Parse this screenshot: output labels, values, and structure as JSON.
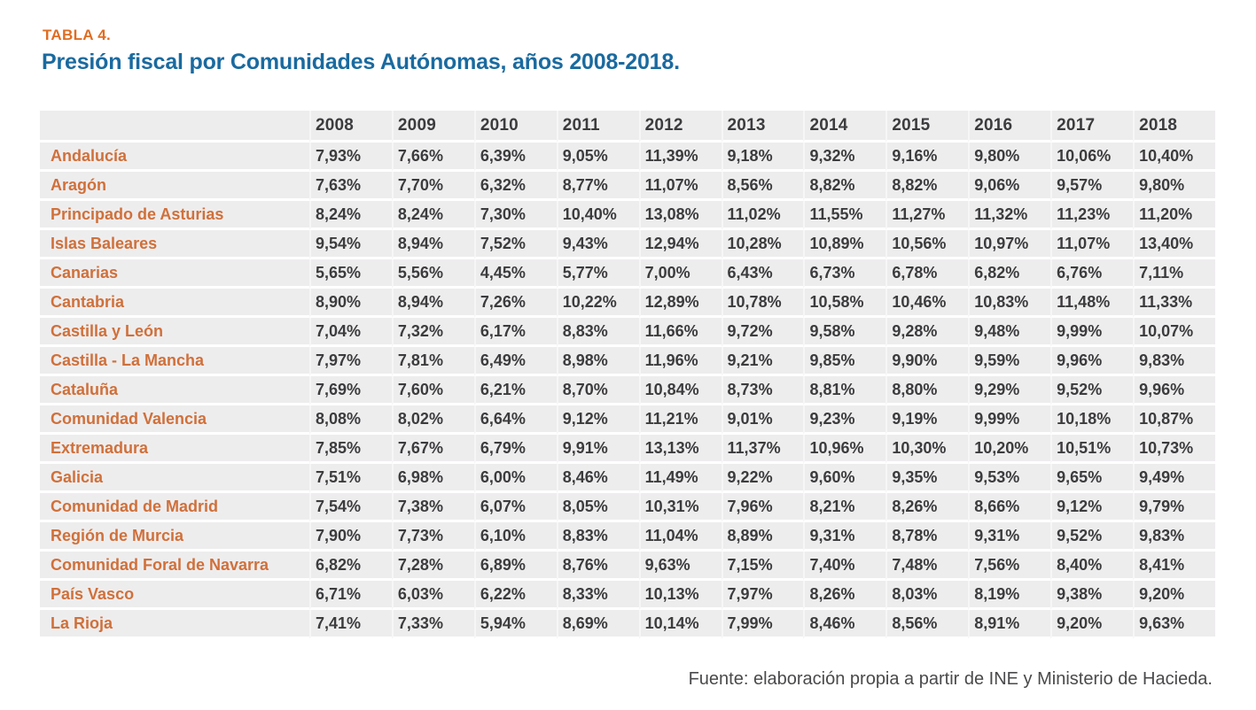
{
  "header": {
    "tag": "TABLA 4.",
    "title": "Presión fiscal por Comunidades Autónomas, años 2008-2018."
  },
  "table": {
    "years": [
      "2008",
      "2009",
      "2010",
      "2011",
      "2012",
      "2013",
      "2014",
      "2015",
      "2016",
      "2017",
      "2018"
    ],
    "rows": [
      {
        "region": "Andalucía",
        "values": [
          "7,93%",
          "7,66%",
          "6,39%",
          "9,05%",
          "11,39%",
          "9,18%",
          "9,32%",
          "9,16%",
          "9,80%",
          "10,06%",
          "10,40%"
        ]
      },
      {
        "region": "Aragón",
        "values": [
          "7,63%",
          "7,70%",
          "6,32%",
          "8,77%",
          "11,07%",
          "8,56%",
          "8,82%",
          "8,82%",
          "9,06%",
          "9,57%",
          "9,80%"
        ]
      },
      {
        "region": "Principado de Asturias",
        "values": [
          "8,24%",
          "8,24%",
          "7,30%",
          "10,40%",
          "13,08%",
          "11,02%",
          "11,55%",
          "11,27%",
          "11,32%",
          "11,23%",
          "11,20%"
        ]
      },
      {
        "region": "Islas Baleares",
        "values": [
          "9,54%",
          "8,94%",
          "7,52%",
          "9,43%",
          "12,94%",
          "10,28%",
          "10,89%",
          "10,56%",
          "10,97%",
          "11,07%",
          "13,40%"
        ]
      },
      {
        "region": "Canarias",
        "values": [
          "5,65%",
          "5,56%",
          "4,45%",
          "5,77%",
          "7,00%",
          "6,43%",
          "6,73%",
          "6,78%",
          "6,82%",
          "6,76%",
          "7,11%"
        ]
      },
      {
        "region": "Cantabria",
        "values": [
          "8,90%",
          "8,94%",
          "7,26%",
          "10,22%",
          "12,89%",
          "10,78%",
          "10,58%",
          "10,46%",
          "10,83%",
          "11,48%",
          "11,33%"
        ]
      },
      {
        "region": "Castilla y León",
        "values": [
          "7,04%",
          "7,32%",
          "6,17%",
          "8,83%",
          "11,66%",
          "9,72%",
          "9,58%",
          "9,28%",
          "9,48%",
          "9,99%",
          "10,07%"
        ]
      },
      {
        "region": "Castilla - La Mancha",
        "values": [
          "7,97%",
          "7,81%",
          "6,49%",
          "8,98%",
          "11,96%",
          "9,21%",
          "9,85%",
          "9,90%",
          "9,59%",
          "9,96%",
          "9,83%"
        ]
      },
      {
        "region": "Cataluña",
        "values": [
          "7,69%",
          "7,60%",
          "6,21%",
          "8,70%",
          "10,84%",
          "8,73%",
          "8,81%",
          "8,80%",
          "9,29%",
          "9,52%",
          "9,96%"
        ]
      },
      {
        "region": "Comunidad Valencia",
        "values": [
          "8,08%",
          "8,02%",
          "6,64%",
          "9,12%",
          "11,21%",
          "9,01%",
          "9,23%",
          "9,19%",
          "9,99%",
          "10,18%",
          "10,87%"
        ]
      },
      {
        "region": "Extremadura",
        "values": [
          "7,85%",
          "7,67%",
          "6,79%",
          "9,91%",
          "13,13%",
          "11,37%",
          "10,96%",
          "10,30%",
          "10,20%",
          "10,51%",
          "10,73%"
        ]
      },
      {
        "region": "Galicia",
        "values": [
          "7,51%",
          "6,98%",
          "6,00%",
          "8,46%",
          "11,49%",
          "9,22%",
          "9,60%",
          "9,35%",
          "9,53%",
          "9,65%",
          "9,49%"
        ]
      },
      {
        "region": "Comunidad de Madrid",
        "values": [
          "7,54%",
          "7,38%",
          "6,07%",
          "8,05%",
          "10,31%",
          "7,96%",
          "8,21%",
          "8,26%",
          "8,66%",
          "9,12%",
          "9,79%"
        ]
      },
      {
        "region": "Región de Murcia",
        "values": [
          "7,90%",
          "7,73%",
          "6,10%",
          "8,83%",
          "11,04%",
          "8,89%",
          "9,31%",
          "8,78%",
          "9,31%",
          "9,52%",
          "9,83%"
        ]
      },
      {
        "region": "Comunidad Foral de Navarra",
        "values": [
          "6,82%",
          "7,28%",
          "6,89%",
          "8,76%",
          "9,63%",
          "7,15%",
          "7,40%",
          "7,48%",
          "7,56%",
          "8,40%",
          "8,41%"
        ]
      },
      {
        "region": "País Vasco",
        "values": [
          "6,71%",
          "6,03%",
          "6,22%",
          "8,33%",
          "10,13%",
          "7,97%",
          "8,26%",
          "8,03%",
          "8,19%",
          "9,38%",
          "9,20%"
        ]
      },
      {
        "region": "La Rioja",
        "values": [
          "7,41%",
          "7,33%",
          "5,94%",
          "8,69%",
          "10,14%",
          "7,99%",
          "8,46%",
          "8,56%",
          "8,91%",
          "9,20%",
          "9,63%"
        ]
      }
    ]
  },
  "footer": {
    "source": "Fuente: elaboración propia a partir de INE y Ministerio de Hacieda."
  },
  "colors": {
    "tag_orange": "#e06d22",
    "label_orange": "#d0703a",
    "title_blue": "#1a6a9f",
    "text_dark": "#3c3b3d",
    "row_background": "#eeedee",
    "separator_white": "#ffffff"
  }
}
